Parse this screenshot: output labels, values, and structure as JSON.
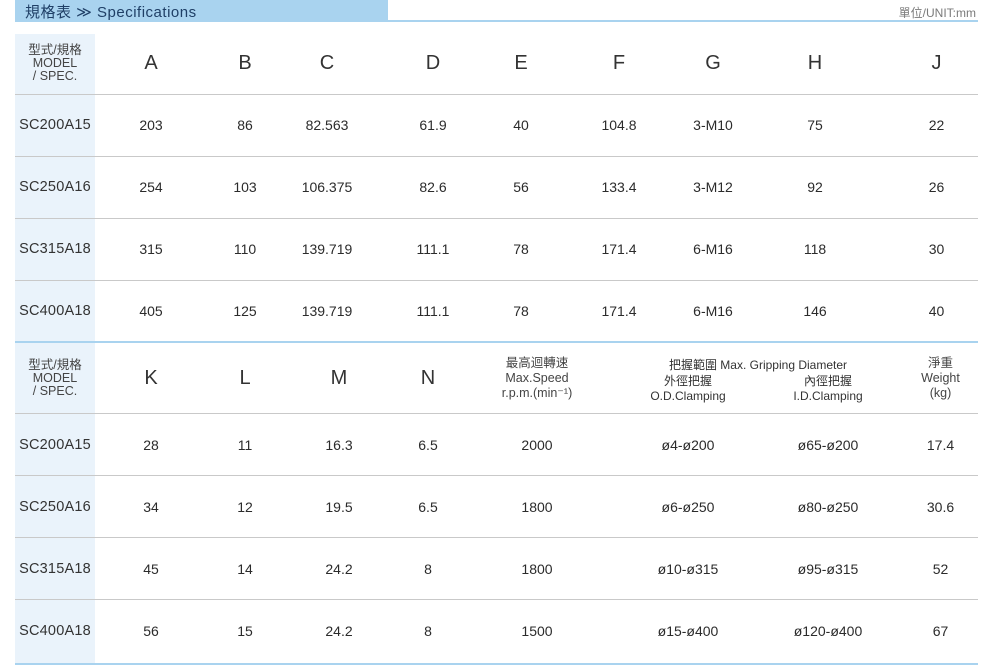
{
  "header": {
    "title": "規格表 ≫ Specifications",
    "unit": "單位/UNIT:mm"
  },
  "model_header": {
    "line1": "型式/規格",
    "line2": "MODEL",
    "line3": "/ SPEC."
  },
  "table1": {
    "columns": [
      "A",
      "B",
      "C",
      "D",
      "E",
      "F",
      "G",
      "H",
      "J"
    ],
    "rows": [
      {
        "model": "SC200A15",
        "values": [
          "203",
          "86",
          "82.563",
          "61.9",
          "40",
          "104.8",
          "3-M10",
          "75",
          "22"
        ]
      },
      {
        "model": "SC250A16",
        "values": [
          "254",
          "103",
          "106.375",
          "82.6",
          "56",
          "133.4",
          "3-M12",
          "92",
          "26"
        ]
      },
      {
        "model": "SC315A18",
        "values": [
          "315",
          "110",
          "139.719",
          "111.1",
          "78",
          "171.4",
          "6-M16",
          "118",
          "30"
        ]
      },
      {
        "model": "SC400A18",
        "values": [
          "405",
          "125",
          "139.719",
          "111.1",
          "78",
          "171.4",
          "6-M16",
          "146",
          "40"
        ]
      }
    ]
  },
  "table2": {
    "columns": [
      "K",
      "L",
      "M",
      "N"
    ],
    "speed_header": {
      "line1": "最高迴轉速",
      "line2": "Max.Speed",
      "line3": "r.p.m.(min⁻¹)"
    },
    "grip_header": {
      "main": "把握範圍  Max. Gripping Diameter",
      "od_line1": "外徑把握",
      "od_line2": "O.D.Clamping",
      "id_line1": "內徑把握",
      "id_line2": "I.D.Clamping"
    },
    "weight_header": {
      "line1": "淨重",
      "line2": "Weight",
      "line3": "(kg)"
    },
    "rows": [
      {
        "model": "SC200A15",
        "k": "28",
        "l": "11",
        "m": "16.3",
        "n": "6.5",
        "speed": "2000",
        "od": "ø4-ø200",
        "id": "ø65-ø200",
        "weight": "17.4"
      },
      {
        "model": "SC250A16",
        "k": "34",
        "l": "12",
        "m": "19.5",
        "n": "6.5",
        "speed": "1800",
        "od": "ø6-ø250",
        "id": "ø80-ø250",
        "weight": "30.6"
      },
      {
        "model": "SC315A18",
        "k": "45",
        "l": "14",
        "m": "24.2",
        "n": "8",
        "speed": "1800",
        "od": "ø10-ø315",
        "id": "ø95-ø315",
        "weight": "52"
      },
      {
        "model": "SC400A18",
        "k": "56",
        "l": "15",
        "m": "24.2",
        "n": "8",
        "speed": "1500",
        "od": "ø15-ø400",
        "id": "ø120-ø400",
        "weight": "67"
      }
    ]
  }
}
